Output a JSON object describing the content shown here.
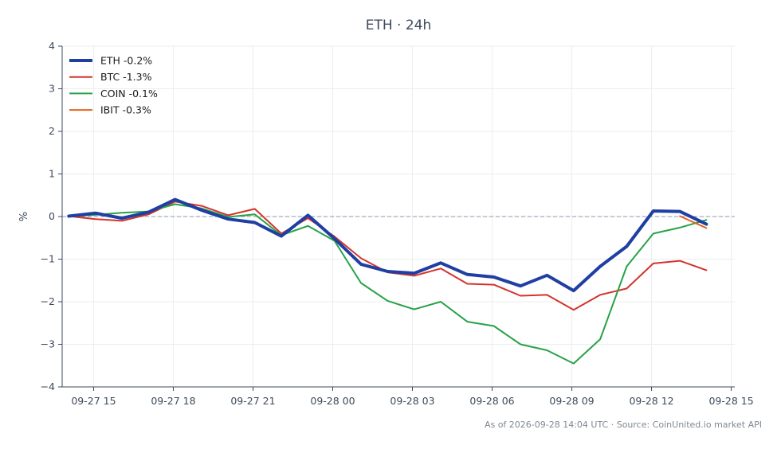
{
  "chart_data": {
    "type": "line",
    "title": "ETH · 24h",
    "xlabel": "",
    "ylabel": "%",
    "ylim": [
      -4,
      4
    ],
    "xlim": [
      "2026-09-27 13:49",
      "2026-09-28 15:08"
    ],
    "yticks": [
      -4,
      -3,
      -2,
      -1,
      0,
      1,
      2,
      3,
      4
    ],
    "ytick_labels": [
      "−4",
      "−3",
      "−2",
      "−1",
      "0",
      "1",
      "2",
      "3",
      "4"
    ],
    "xticks": [
      {
        "value": "2026-09-27 15:00",
        "label": "09-27 15"
      },
      {
        "value": "2026-09-27 18:00",
        "label": "09-27 18"
      },
      {
        "value": "2026-09-27 21:00",
        "label": "09-27 21"
      },
      {
        "value": "2026-09-28 00:00",
        "label": "09-28 00"
      },
      {
        "value": "2026-09-28 03:00",
        "label": "09-28 03"
      },
      {
        "value": "2026-09-28 06:00",
        "label": "09-28 06"
      },
      {
        "value": "2026-09-28 09:00",
        "label": "09-28 09"
      },
      {
        "value": "2026-09-28 12:00",
        "label": "09-28 12"
      },
      {
        "value": "2026-09-28 15:00",
        "label": "09-28 15"
      }
    ],
    "grid": true,
    "reference_line": {
      "y": 0,
      "style": "dashed",
      "color": "#8d97ad"
    },
    "legend_position": "top-left",
    "series": [
      {
        "name": "ETH -0.2%",
        "color": "#1f3fa3",
        "emphasis": "bold",
        "points": [
          [
            "2026-09-27 14:04",
            0.01
          ],
          [
            "2026-09-27 15:04",
            0.08
          ],
          [
            "2026-09-27 16:04",
            -0.04
          ],
          [
            "2026-09-27 17:04",
            0.1
          ],
          [
            "2026-09-27 18:04",
            0.4
          ],
          [
            "2026-09-27 19:04",
            0.15
          ],
          [
            "2026-09-27 20:04",
            -0.06
          ],
          [
            "2026-09-27 21:04",
            -0.14
          ],
          [
            "2026-09-27 22:04",
            -0.46
          ],
          [
            "2026-09-27 23:04",
            0.03
          ],
          [
            "2026-09-28 00:04",
            -0.52
          ],
          [
            "2026-09-28 01:04",
            -1.12
          ],
          [
            "2026-09-28 02:04",
            -1.29
          ],
          [
            "2026-09-28 03:04",
            -1.33
          ],
          [
            "2026-09-28 04:04",
            -1.09
          ],
          [
            "2026-09-28 05:04",
            -1.36
          ],
          [
            "2026-09-28 06:04",
            -1.42
          ],
          [
            "2026-09-28 07:04",
            -1.63
          ],
          [
            "2026-09-28 08:04",
            -1.38
          ],
          [
            "2026-09-28 09:04",
            -1.74
          ],
          [
            "2026-09-28 10:04",
            -1.17
          ],
          [
            "2026-09-28 11:04",
            -0.7
          ],
          [
            "2026-09-28 12:04",
            0.13
          ],
          [
            "2026-09-28 13:04",
            0.12
          ],
          [
            "2026-09-28 14:04",
            -0.18
          ]
        ]
      },
      {
        "name": "BTC -1.3%",
        "color": "#d3342c",
        "points": [
          [
            "2026-09-27 14:04",
            0.01
          ],
          [
            "2026-09-27 15:04",
            -0.06
          ],
          [
            "2026-09-27 16:04",
            -0.1
          ],
          [
            "2026-09-27 17:04",
            0.05
          ],
          [
            "2026-09-27 18:04",
            0.35
          ],
          [
            "2026-09-27 19:04",
            0.25
          ],
          [
            "2026-09-27 20:04",
            0.03
          ],
          [
            "2026-09-27 21:04",
            0.18
          ],
          [
            "2026-09-27 22:04",
            -0.4
          ],
          [
            "2026-09-27 23:04",
            -0.04
          ],
          [
            "2026-09-28 00:04",
            -0.47
          ],
          [
            "2026-09-28 01:04",
            -0.98
          ],
          [
            "2026-09-28 02:04",
            -1.31
          ],
          [
            "2026-09-28 03:04",
            -1.39
          ],
          [
            "2026-09-28 04:04",
            -1.22
          ],
          [
            "2026-09-28 05:04",
            -1.58
          ],
          [
            "2026-09-28 06:04",
            -1.6
          ],
          [
            "2026-09-28 07:04",
            -1.86
          ],
          [
            "2026-09-28 08:04",
            -1.84
          ],
          [
            "2026-09-28 09:04",
            -2.19
          ],
          [
            "2026-09-28 10:04",
            -1.84
          ],
          [
            "2026-09-28 11:04",
            -1.69
          ],
          [
            "2026-09-28 12:04",
            -1.1
          ],
          [
            "2026-09-28 13:04",
            -1.04
          ],
          [
            "2026-09-28 14:04",
            -1.26
          ]
        ]
      },
      {
        "name": "COIN -0.1%",
        "color": "#27a247",
        "points": [
          [
            "2026-09-27 14:04",
            0.01
          ],
          [
            "2026-09-27 15:04",
            0.04
          ],
          [
            "2026-09-27 16:04",
            0.09
          ],
          [
            "2026-09-27 17:04",
            0.12
          ],
          [
            "2026-09-27 18:04",
            0.29
          ],
          [
            "2026-09-27 19:04",
            0.19
          ],
          [
            "2026-09-27 20:04",
            -0.01
          ],
          [
            "2026-09-27 21:04",
            0.05
          ],
          [
            "2026-09-27 22:04",
            -0.44
          ],
          [
            "2026-09-27 23:04",
            -0.22
          ],
          [
            "2026-09-28 00:04",
            -0.57
          ],
          [
            "2026-09-28 01:04",
            -1.56
          ],
          [
            "2026-09-28 02:04",
            -1.98
          ],
          [
            "2026-09-28 03:04",
            -2.18
          ],
          [
            "2026-09-28 04:04",
            -2.0
          ],
          [
            "2026-09-28 05:04",
            -2.47
          ],
          [
            "2026-09-28 06:04",
            -2.57
          ],
          [
            "2026-09-28 07:04",
            -3.0
          ],
          [
            "2026-09-28 08:04",
            -3.14
          ],
          [
            "2026-09-28 09:04",
            -3.45
          ],
          [
            "2026-09-28 10:04",
            -2.88
          ],
          [
            "2026-09-28 11:04",
            -1.17
          ],
          [
            "2026-09-28 12:04",
            -0.4
          ],
          [
            "2026-09-28 13:04",
            -0.26
          ],
          [
            "2026-09-28 14:04",
            -0.08
          ]
        ]
      },
      {
        "name": "IBIT -0.3%",
        "color": "#e5631d",
        "points": [
          [
            "2026-09-28 13:04",
            0.01
          ],
          [
            "2026-09-28 14:04",
            -0.27
          ]
        ]
      }
    ]
  },
  "footer": {
    "note": "As of 2026-09-28 14:04 UTC · Source: CoinUnited.io market API"
  }
}
